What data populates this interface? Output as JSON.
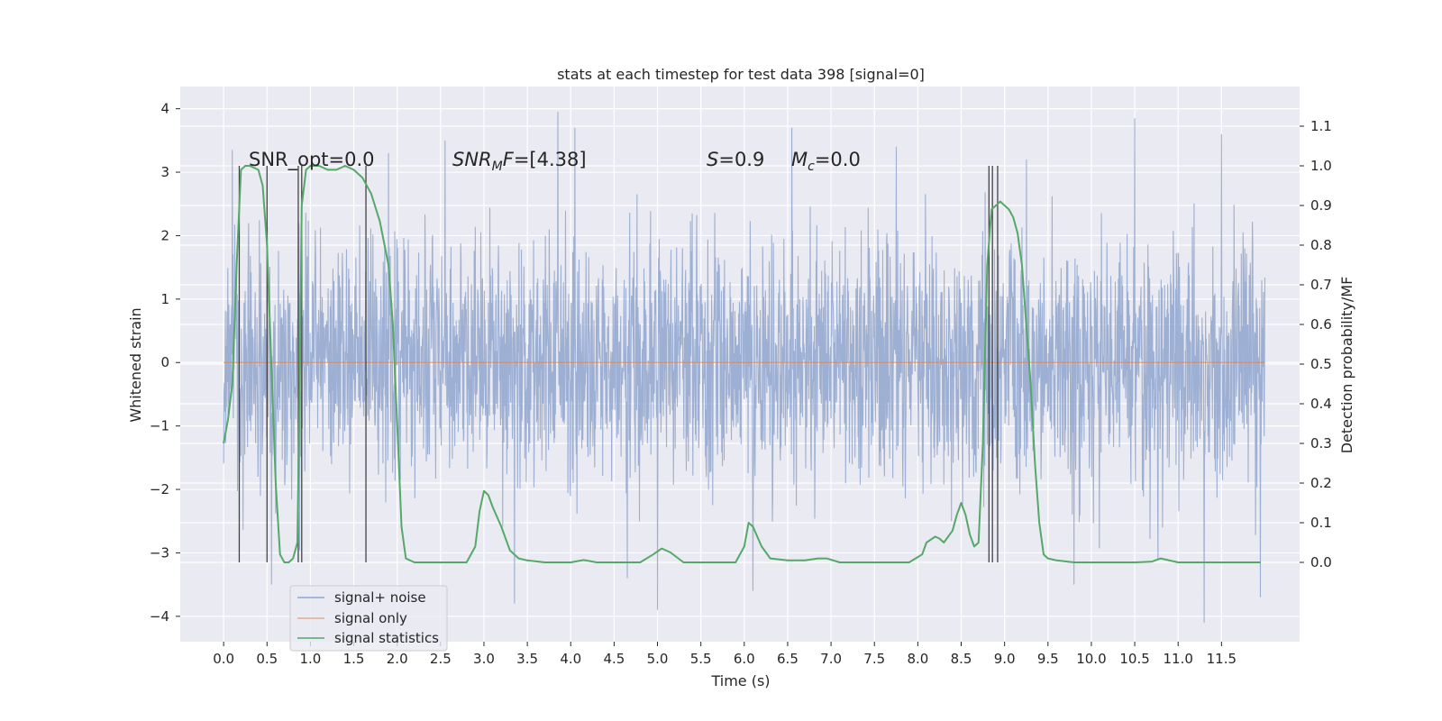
{
  "chart_data": {
    "type": "line",
    "title": "stats at each timestep for test data 398 [signal=0]",
    "xlabel": "Time (s)",
    "ylabel_left": "Whitened strain",
    "ylabel_right": "Detection probability/MF",
    "xlim": [
      -0.5,
      12.4
    ],
    "ylim_left": [
      -4.4,
      4.35
    ],
    "ylim_right": [
      -0.2,
      1.2
    ],
    "x_ticks": [
      "0.0",
      "0.5",
      "1.0",
      "1.5",
      "2.0",
      "2.5",
      "3.0",
      "3.5",
      "4.0",
      "4.5",
      "5.0",
      "5.5",
      "6.0",
      "6.5",
      "7.0",
      "7.5",
      "8.0",
      "8.5",
      "9.0",
      "9.5",
      "10.0",
      "10.5",
      "11.0",
      "11.5"
    ],
    "y_ticks_left": [
      "4",
      "3",
      "2",
      "1",
      "0",
      "−1",
      "−2",
      "−3",
      "−4"
    ],
    "y_ticks_right": [
      "1.1",
      "1.0",
      "0.9",
      "0.8",
      "0.7",
      "0.6",
      "0.5",
      "0.4",
      "0.3",
      "0.2",
      "0.1",
      "0.0"
    ],
    "grid": true,
    "legend_position": "lower-left",
    "annotations": {
      "snr_opt": "SNR_opt=0.0",
      "snr_mf": "=[4.38]",
      "s_val": "=0.9",
      "mc_val": "=0.0"
    },
    "noise_series": {
      "name": "signal+ noise",
      "color": "#8fa4cc",
      "x_range": [
        0.0,
        12.0
      ],
      "typical_range": [
        -2.6,
        2.6
      ],
      "extreme_range": [
        -4.1,
        3.95
      ],
      "spikes": [
        {
          "x": 0.1,
          "y": 3.35
        },
        {
          "x": 0.55,
          "y": -3.5
        },
        {
          "x": 1.9,
          "y": 3.3
        },
        {
          "x": 2.55,
          "y": 3.5
        },
        {
          "x": 3.35,
          "y": -3.8
        },
        {
          "x": 3.85,
          "y": 3.95
        },
        {
          "x": 4.05,
          "y": 3.7
        },
        {
          "x": 4.65,
          "y": -3.4
        },
        {
          "x": 5.0,
          "y": -3.9
        },
        {
          "x": 6.1,
          "y": -3.6
        },
        {
          "x": 6.55,
          "y": 3.7
        },
        {
          "x": 7.75,
          "y": 3.4
        },
        {
          "x": 9.25,
          "y": 3.2
        },
        {
          "x": 9.8,
          "y": -3.5
        },
        {
          "x": 10.5,
          "y": 3.85
        },
        {
          "x": 11.3,
          "y": -4.1
        },
        {
          "x": 11.5,
          "y": 3.6
        },
        {
          "x": 11.95,
          "y": -3.7
        }
      ]
    },
    "series": [
      {
        "name": "signal only",
        "color": "#dd8452",
        "x": [
          0.0,
          12.0
        ],
        "y": [
          0.0,
          0.0
        ]
      },
      {
        "name": "signal statistics",
        "color": "#55a868",
        "x": [
          0.0,
          0.05,
          0.1,
          0.15,
          0.2,
          0.25,
          0.3,
          0.4,
          0.45,
          0.5,
          0.55,
          0.6,
          0.65,
          0.7,
          0.75,
          0.8,
          0.85,
          0.88,
          0.9,
          0.95,
          1.0,
          1.1,
          1.2,
          1.3,
          1.4,
          1.5,
          1.6,
          1.7,
          1.8,
          1.9,
          1.95,
          2.0,
          2.05,
          2.1,
          2.2,
          2.4,
          2.6,
          2.8,
          2.9,
          2.95,
          3.0,
          3.05,
          3.1,
          3.2,
          3.3,
          3.4,
          3.5,
          3.7,
          4.0,
          4.15,
          4.3,
          4.6,
          4.8,
          4.95,
          5.05,
          5.15,
          5.3,
          5.6,
          5.9,
          6.0,
          6.05,
          6.1,
          6.2,
          6.3,
          6.5,
          6.7,
          6.85,
          6.95,
          7.1,
          7.5,
          7.9,
          8.05,
          8.1,
          8.2,
          8.25,
          8.3,
          8.4,
          8.45,
          8.5,
          8.55,
          8.6,
          8.65,
          8.7,
          8.75,
          8.8,
          8.85,
          8.9,
          8.95,
          9.0,
          9.05,
          9.1,
          9.15,
          9.2,
          9.25,
          9.3,
          9.35,
          9.4,
          9.45,
          9.5,
          9.6,
          9.8,
          10.0,
          10.5,
          10.7,
          10.8,
          11.0,
          11.5,
          11.95
        ],
        "y": [
          0.3,
          0.36,
          0.45,
          0.75,
          0.99,
          1.0,
          1.0,
          0.99,
          0.95,
          0.8,
          0.5,
          0.2,
          0.02,
          0.0,
          0.0,
          0.01,
          0.05,
          0.5,
          0.9,
          0.99,
          1.0,
          1.0,
          0.99,
          0.99,
          1.0,
          0.99,
          0.97,
          0.93,
          0.86,
          0.75,
          0.6,
          0.35,
          0.09,
          0.01,
          0.0,
          0.0,
          0.0,
          0.0,
          0.04,
          0.13,
          0.18,
          0.17,
          0.14,
          0.09,
          0.03,
          0.01,
          0.005,
          0.0,
          0.0,
          0.006,
          0.0,
          0.0,
          0.0,
          0.02,
          0.035,
          0.025,
          0.0,
          0.0,
          0.0,
          0.04,
          0.1,
          0.09,
          0.04,
          0.01,
          0.005,
          0.005,
          0.01,
          0.01,
          0.0,
          0.0,
          0.0,
          0.02,
          0.05,
          0.065,
          0.06,
          0.05,
          0.08,
          0.12,
          0.15,
          0.12,
          0.07,
          0.04,
          0.05,
          0.3,
          0.75,
          0.89,
          0.9,
          0.91,
          0.9,
          0.89,
          0.87,
          0.83,
          0.75,
          0.6,
          0.45,
          0.25,
          0.1,
          0.02,
          0.01,
          0.005,
          0.0,
          0.0,
          0.0,
          0.002,
          0.01,
          0.0,
          0.0,
          0.0
        ]
      },
      {
        "name": "detection markers",
        "color": "#444444",
        "x": [
          0.18,
          0.5,
          0.86,
          0.9,
          1.64,
          8.82,
          8.86,
          8.92
        ]
      }
    ]
  }
}
